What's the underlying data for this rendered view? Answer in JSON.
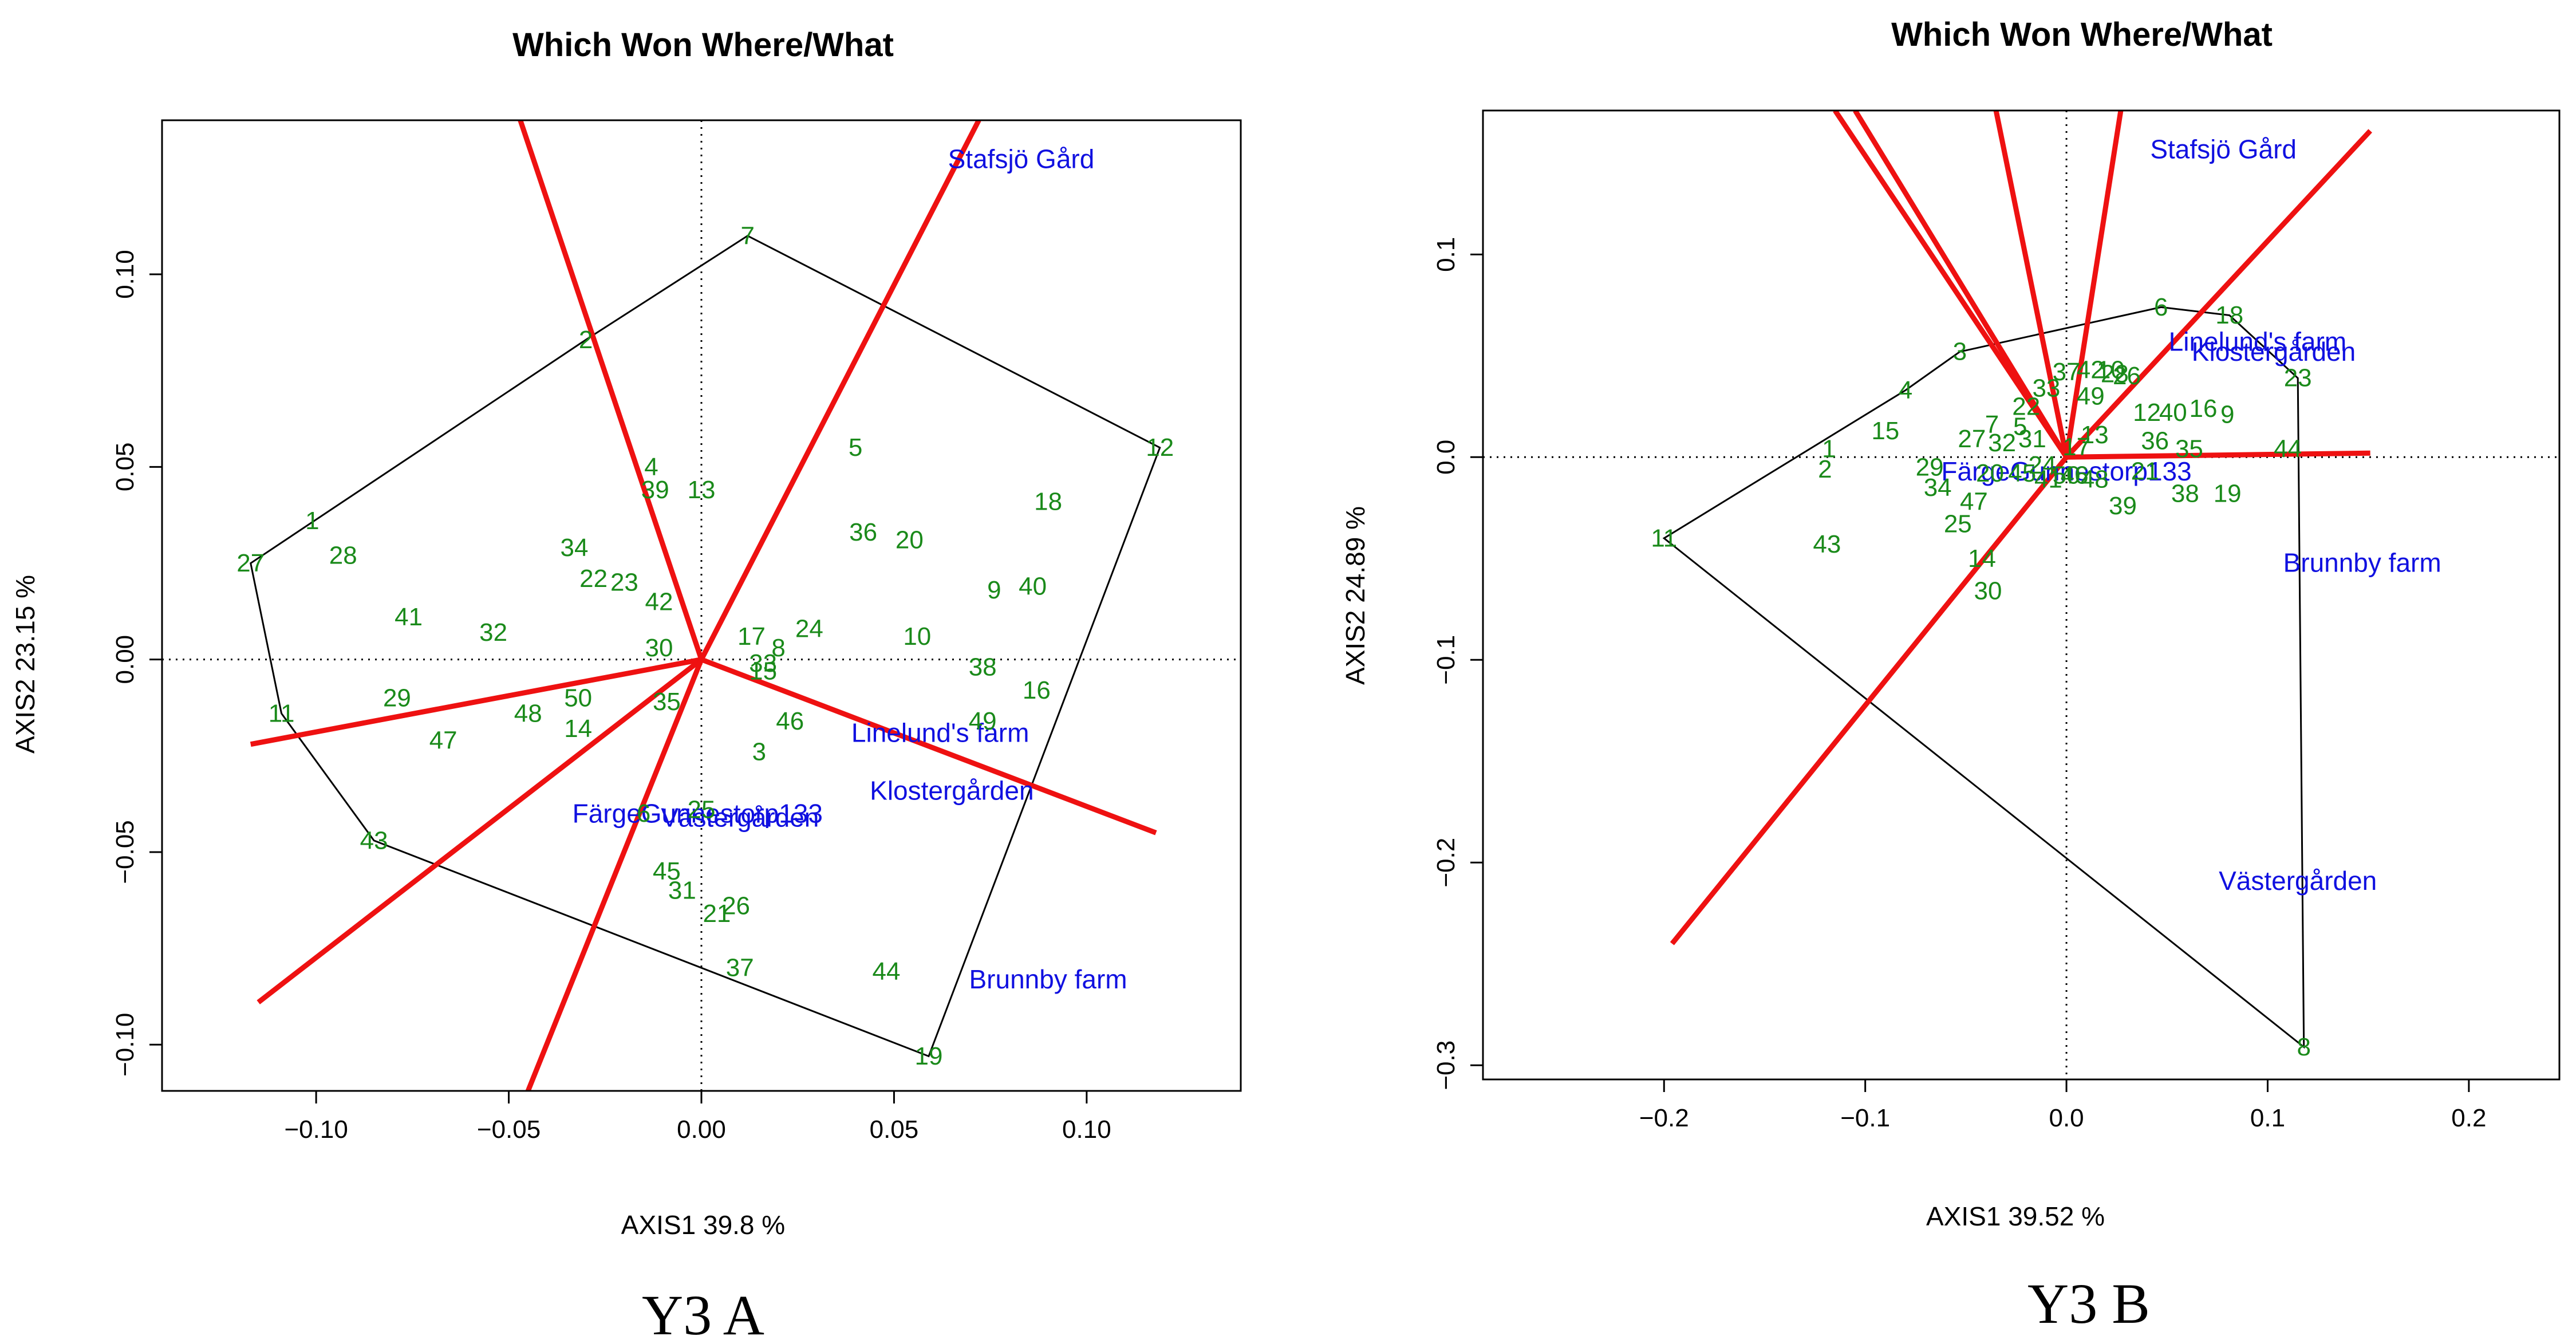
{
  "colors": {
    "axes": "#000000",
    "hull": "#000000",
    "ray": "#ee1111",
    "genotype": "#1a8a1a",
    "environment": "#1010e0"
  },
  "chart_data": [
    {
      "type": "scatter",
      "subtype": "GGE biplot - which won where/what",
      "title": "Which Won Where/What",
      "xlabel": "AXIS1 39.8 %",
      "ylabel": "AXIS2 23.15 %",
      "caption": "Y3 A",
      "xlim": [
        -0.14,
        0.14
      ],
      "ylim": [
        -0.112,
        0.14
      ],
      "xticks": [
        {
          "v": -0.1,
          "label": "−0.10"
        },
        {
          "v": -0.05,
          "label": "−0.05"
        },
        {
          "v": 0.0,
          "label": "0.00"
        },
        {
          "v": 0.05,
          "label": "0.05"
        },
        {
          "v": 0.1,
          "label": "0.10"
        }
      ],
      "yticks": [
        {
          "v": -0.1,
          "label": "−0.10"
        },
        {
          "v": -0.05,
          "label": "−0.05"
        },
        {
          "v": 0.0,
          "label": "0.00"
        },
        {
          "v": 0.05,
          "label": "0.05"
        },
        {
          "v": 0.1,
          "label": "0.10"
        }
      ],
      "genotypes": [
        {
          "label": "7",
          "x": 0.012,
          "y": 0.11
        },
        {
          "label": "2",
          "x": -0.03,
          "y": 0.083
        },
        {
          "label": "12",
          "x": 0.119,
          "y": 0.055
        },
        {
          "label": "5",
          "x": 0.04,
          "y": 0.055
        },
        {
          "label": "4",
          "x": -0.013,
          "y": 0.05
        },
        {
          "label": "39",
          "x": -0.012,
          "y": 0.044
        },
        {
          "label": "13",
          "x": 0.0,
          "y": 0.044
        },
        {
          "label": "18",
          "x": 0.09,
          "y": 0.041
        },
        {
          "label": "1",
          "x": -0.101,
          "y": 0.036
        },
        {
          "label": "36",
          "x": 0.042,
          "y": 0.033
        },
        {
          "label": "20",
          "x": 0.054,
          "y": 0.031
        },
        {
          "label": "34",
          "x": -0.033,
          "y": 0.029
        },
        {
          "label": "28",
          "x": -0.093,
          "y": 0.027
        },
        {
          "label": "27",
          "x": -0.117,
          "y": 0.025
        },
        {
          "label": "22",
          "x": -0.028,
          "y": 0.021
        },
        {
          "label": "23",
          "x": -0.02,
          "y": 0.02
        },
        {
          "label": "9",
          "x": 0.076,
          "y": 0.018
        },
        {
          "label": "40",
          "x": 0.086,
          "y": 0.019
        },
        {
          "label": "42",
          "x": -0.011,
          "y": 0.015
        },
        {
          "label": "41",
          "x": -0.076,
          "y": 0.011
        },
        {
          "label": "32",
          "x": -0.054,
          "y": 0.007
        },
        {
          "label": "24",
          "x": 0.028,
          "y": 0.008
        },
        {
          "label": "17",
          "x": 0.013,
          "y": 0.006
        },
        {
          "label": "10",
          "x": 0.056,
          "y": 0.006
        },
        {
          "label": "30",
          "x": -0.011,
          "y": 0.003
        },
        {
          "label": "8",
          "x": 0.02,
          "y": 0.003
        },
        {
          "label": "38",
          "x": 0.073,
          "y": -0.002
        },
        {
          "label": "33",
          "x": 0.016,
          "y": -0.001
        },
        {
          "label": "15",
          "x": 0.016,
          "y": -0.003
        },
        {
          "label": "16",
          "x": 0.087,
          "y": -0.008
        },
        {
          "label": "29",
          "x": -0.079,
          "y": -0.01
        },
        {
          "label": "50",
          "x": -0.032,
          "y": -0.01
        },
        {
          "label": "35",
          "x": -0.009,
          "y": -0.011
        },
        {
          "label": "11",
          "x": -0.109,
          "y": -0.014
        },
        {
          "label": "48",
          "x": -0.045,
          "y": -0.014
        },
        {
          "label": "14",
          "x": -0.032,
          "y": -0.018
        },
        {
          "label": "46",
          "x": 0.023,
          "y": -0.016
        },
        {
          "label": "49",
          "x": 0.073,
          "y": -0.016
        },
        {
          "label": "47",
          "x": -0.067,
          "y": -0.021
        },
        {
          "label": "3",
          "x": 0.015,
          "y": -0.024
        },
        {
          "label": "43",
          "x": -0.085,
          "y": -0.047
        },
        {
          "label": "45",
          "x": -0.009,
          "y": -0.055
        },
        {
          "label": "31",
          "x": -0.005,
          "y": -0.06
        },
        {
          "label": "21",
          "x": 0.004,
          "y": -0.066
        },
        {
          "label": "26",
          "x": 0.009,
          "y": -0.064
        },
        {
          "label": "37",
          "x": 0.01,
          "y": -0.08
        },
        {
          "label": "44",
          "x": 0.048,
          "y": -0.081
        },
        {
          "label": "19",
          "x": 0.059,
          "y": -0.103
        },
        {
          "label": "6",
          "x": -0.015,
          "y": -0.04
        },
        {
          "label": "25",
          "x": 0.0,
          "y": -0.039
        }
      ],
      "hull": [
        "7",
        "12",
        "19",
        "43",
        "11",
        "27",
        "2"
      ],
      "rays": [
        [
          -0.047,
          0.14
        ],
        [
          -0.117,
          -0.022
        ],
        [
          -0.115,
          -0.089
        ],
        [
          -0.045,
          -0.112
        ],
        [
          0.072,
          0.14
        ],
        [
          0.118,
          -0.045
        ]
      ],
      "environments": [
        {
          "label": "Stafsjö Gård",
          "x": 0.083,
          "y": 0.13
        },
        {
          "label": "Linelund's farm",
          "x": 0.062,
          "y": -0.019
        },
        {
          "label": "Klostergården",
          "x": 0.065,
          "y": -0.034
        },
        {
          "label": "FärgeGunnestorp133",
          "x": -0.001,
          "y": -0.04
        },
        {
          "label": "Västergården",
          "x": 0.01,
          "y": -0.041
        },
        {
          "label": "Brunnby farm",
          "x": 0.09,
          "y": -0.083
        }
      ]
    },
    {
      "type": "scatter",
      "subtype": "GGE biplot - which won where/what",
      "title": "Which Won Where/What",
      "xlabel": "AXIS1 39.52 %",
      "ylabel": "AXIS2 24.89 %",
      "caption": "Y3 B",
      "xlim": [
        -0.29,
        0.245
      ],
      "ylim": [
        -0.307,
        0.171
      ],
      "xticks": [
        {
          "v": -0.2,
          "label": "−0.2"
        },
        {
          "v": -0.1,
          "label": "−0.1"
        },
        {
          "v": 0.0,
          "label": "0.0"
        },
        {
          "v": 0.1,
          "label": "0.1"
        },
        {
          "v": 0.2,
          "label": "0.2"
        }
      ],
      "yticks": [
        {
          "v": -0.3,
          "label": "−0.3"
        },
        {
          "v": -0.2,
          "label": "−0.2"
        },
        {
          "v": -0.1,
          "label": "−0.1"
        },
        {
          "v": 0.0,
          "label": "0.0"
        },
        {
          "v": 0.1,
          "label": "0.1"
        }
      ],
      "genotypes": [
        {
          "label": "6",
          "x": 0.047,
          "y": 0.074
        },
        {
          "label": "18",
          "x": 0.081,
          "y": 0.07
        },
        {
          "label": "3",
          "x": -0.053,
          "y": 0.052
        },
        {
          "label": "37",
          "x": 0.0,
          "y": 0.042
        },
        {
          "label": "42",
          "x": 0.012,
          "y": 0.043
        },
        {
          "label": "10",
          "x": 0.022,
          "y": 0.043
        },
        {
          "label": "26",
          "x": 0.03,
          "y": 0.04
        },
        {
          "label": "33",
          "x": -0.01,
          "y": 0.034
        },
        {
          "label": "49",
          "x": 0.012,
          "y": 0.03
        },
        {
          "label": "4",
          "x": -0.08,
          "y": 0.033
        },
        {
          "label": "23",
          "x": 0.115,
          "y": 0.039
        },
        {
          "label": "22",
          "x": -0.02,
          "y": 0.025
        },
        {
          "label": "12",
          "x": 0.04,
          "y": 0.022
        },
        {
          "label": "40",
          "x": 0.053,
          "y": 0.022
        },
        {
          "label": "16",
          "x": 0.068,
          "y": 0.024
        },
        {
          "label": "9",
          "x": 0.08,
          "y": 0.021
        },
        {
          "label": "15",
          "x": -0.09,
          "y": 0.013
        },
        {
          "label": "7",
          "x": -0.037,
          "y": 0.016
        },
        {
          "label": "5",
          "x": -0.023,
          "y": 0.015
        },
        {
          "label": "13",
          "x": 0.014,
          "y": 0.011
        },
        {
          "label": "27",
          "x": -0.047,
          "y": 0.009
        },
        {
          "label": "32",
          "x": -0.032,
          "y": 0.007
        },
        {
          "label": "31",
          "x": -0.017,
          "y": 0.009
        },
        {
          "label": "36",
          "x": 0.044,
          "y": 0.008
        },
        {
          "label": "35",
          "x": 0.061,
          "y": 0.004
        },
        {
          "label": "44",
          "x": 0.11,
          "y": 0.004
        },
        {
          "label": "17",
          "x": 0.005,
          "y": 0.005
        },
        {
          "label": "1",
          "x": -0.118,
          "y": 0.004
        },
        {
          "label": "2",
          "x": -0.12,
          "y": -0.006
        },
        {
          "label": "29",
          "x": -0.068,
          "y": -0.005
        },
        {
          "label": "20",
          "x": -0.038,
          "y": -0.008
        },
        {
          "label": "45",
          "x": -0.022,
          "y": -0.008
        },
        {
          "label": "46",
          "x": 0.004,
          "y": -0.009
        },
        {
          "label": "48",
          "x": 0.014,
          "y": -0.011
        },
        {
          "label": "34",
          "x": -0.064,
          "y": -0.015
        },
        {
          "label": "21",
          "x": 0.039,
          "y": -0.007
        },
        {
          "label": "38",
          "x": 0.059,
          "y": -0.018
        },
        {
          "label": "19",
          "x": 0.08,
          "y": -0.018
        },
        {
          "label": "47",
          "x": -0.046,
          "y": -0.022
        },
        {
          "label": "39",
          "x": 0.028,
          "y": -0.024
        },
        {
          "label": "25",
          "x": -0.054,
          "y": -0.033
        },
        {
          "label": "11",
          "x": -0.2,
          "y": -0.04
        },
        {
          "label": "43",
          "x": -0.119,
          "y": -0.043
        },
        {
          "label": "14",
          "x": -0.042,
          "y": -0.05
        },
        {
          "label": "30",
          "x": -0.039,
          "y": -0.066
        },
        {
          "label": "8",
          "x": 0.118,
          "y": -0.291
        },
        {
          "label": "24",
          "x": -0.012,
          "y": -0.004
        },
        {
          "label": "28",
          "x": 0.024,
          "y": 0.041
        },
        {
          "label": "41",
          "x": -0.009,
          "y": -0.011
        },
        {
          "label": "50",
          "x": 0.0,
          "y": -0.009
        }
      ],
      "hull": [
        "6",
        "18",
        "23",
        "8",
        "11",
        "4",
        "3"
      ],
      "rays": [
        [
          -0.115,
          0.171
        ],
        [
          -0.105,
          0.171
        ],
        [
          -0.035,
          0.171
        ],
        [
          0.027,
          0.171
        ],
        [
          0.151,
          0.161
        ],
        [
          0.151,
          0.002
        ],
        [
          -0.196,
          -0.24
        ]
      ],
      "environments": [
        {
          "label": "Stafsjö Gård",
          "x": 0.078,
          "y": 0.152
        },
        {
          "label": "Linelund's farm",
          "x": 0.095,
          "y": 0.057
        },
        {
          "label": "Klostergården",
          "x": 0.103,
          "y": 0.052
        },
        {
          "label": "FärgeGunnestorp133",
          "x": 0.0,
          "y": -0.007
        },
        {
          "label": "Brunnby farm",
          "x": 0.147,
          "y": -0.052
        },
        {
          "label": "Västergården",
          "x": 0.115,
          "y": -0.209
        }
      ]
    }
  ]
}
